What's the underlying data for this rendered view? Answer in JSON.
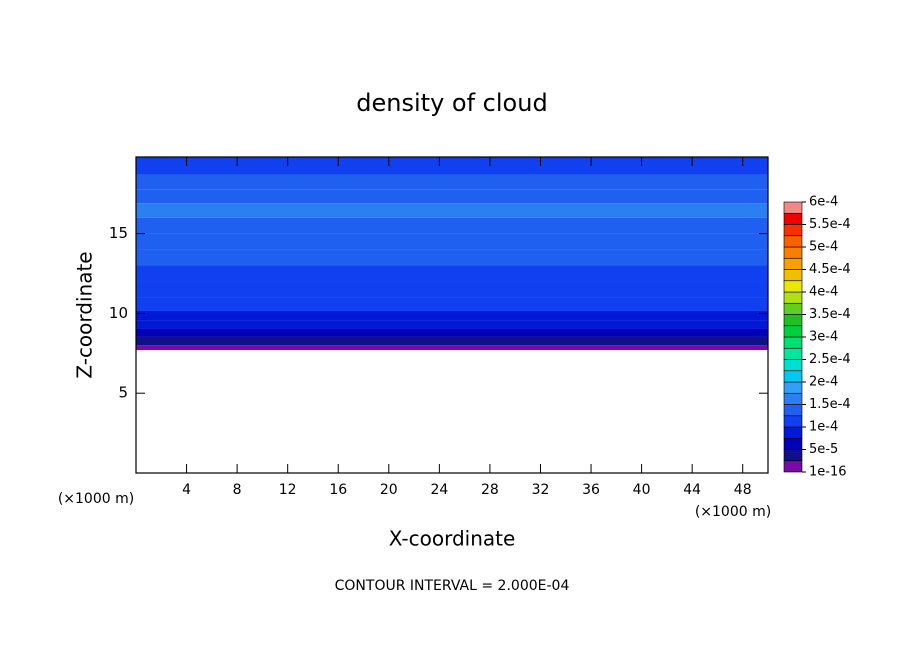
{
  "chart_data": {
    "type": "contour",
    "title": "density of cloud",
    "x_label": "X-coordinate",
    "y_label": "Z-coordinate",
    "x_unit": "(×1000 m)",
    "y_unit": "(×1000 m)",
    "note": "CONTOUR INTERVAL = 2.000E-04",
    "xlim": [
      0,
      50
    ],
    "ylim": [
      0,
      19.8
    ],
    "xticks": [
      4,
      8,
      12,
      16,
      20,
      24,
      28,
      32,
      36,
      40,
      44,
      48
    ],
    "yticks": [
      5,
      10,
      15
    ],
    "z": [
      7.7,
      8.3,
      8.8,
      9.3,
      9.8,
      10.5,
      11.5,
      12.5,
      13.5,
      14.5,
      15.5,
      16.5,
      17.3,
      18.2,
      19.2
    ],
    "values": [
      1e-05,
      4e-05,
      6e-05,
      8e-05,
      9e-05,
      0.00011,
      0.000115,
      0.00012,
      0.00013,
      0.00014,
      0.000145,
      0.00015,
      0.00014,
      0.00013,
      0.00012
    ],
    "colorbar_levels": [
      {
        "value": 1e-16,
        "label": "1e-16"
      },
      {
        "value": 5e-05,
        "label": "5e-5"
      },
      {
        "value": 0.0001,
        "label": "1e-4"
      },
      {
        "value": 0.00015,
        "label": "1.5e-4"
      },
      {
        "value": 0.0002,
        "label": "2e-4"
      },
      {
        "value": 0.00025,
        "label": "2.5e-4"
      },
      {
        "value": 0.0003,
        "label": "3e-4"
      },
      {
        "value": 0.00035,
        "label": "3.5e-4"
      },
      {
        "value": 0.0004,
        "label": "4e-4"
      },
      {
        "value": 0.00045,
        "label": "4.5e-4"
      },
      {
        "value": 0.0005,
        "label": "5e-4"
      },
      {
        "value": 0.00055,
        "label": "5.5e-4"
      },
      {
        "value": 0.0006,
        "label": "6e-4"
      }
    ],
    "colors": [
      "#7a0aa8",
      "#10108a",
      "#0000b8",
      "#0018d8",
      "#1040f0",
      "#2060f0",
      "#2a80f0",
      "#30a0f8",
      "#00c8f0",
      "#00e0d0",
      "#00e8a0",
      "#00e070",
      "#00d040",
      "#20c020",
      "#60d020",
      "#b0e010",
      "#e8e800",
      "#f0c000",
      "#f8a000",
      "#f88000",
      "#f86000",
      "#f83000",
      "#f00000",
      "#f08888"
    ]
  }
}
